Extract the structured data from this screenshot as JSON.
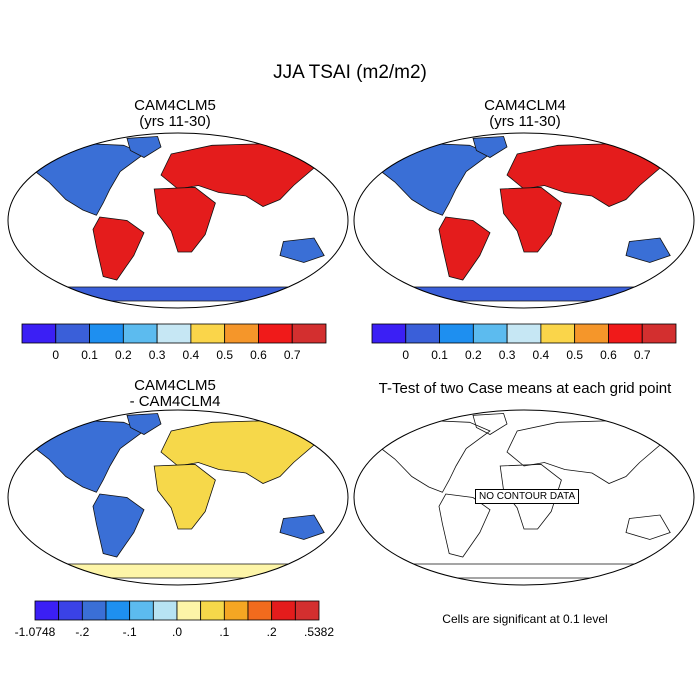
{
  "main_title": "JJA TSAI (m2/m2)",
  "panels": [
    {
      "id": "cam4clm5",
      "title_line1": "CAM4CLM5",
      "title_line2": "(yrs 11-30)"
    },
    {
      "id": "cam4clm4",
      "title_line1": "CAM4CLM4",
      "title_line2": "(yrs 11-30)"
    },
    {
      "id": "diff",
      "title_line1": "CAM4CLM5",
      "title_line2": "- CAM4CLM4"
    },
    {
      "id": "ttest",
      "title_line1": "T-Test of two Case means at each grid point",
      "title_line2": ""
    }
  ],
  "colorbar_abs": {
    "colors": [
      "#3b1ff5",
      "#3a5fd9",
      "#1e8ff0",
      "#5cbbef",
      "#c6e7f4",
      "#fad54a",
      "#f5962a",
      "#f01a1a",
      "#d32f2f"
    ],
    "labels": [
      "0",
      "0.1",
      "0.2",
      "0.3",
      "0.4",
      "0.5",
      "0.6",
      "0.7"
    ]
  },
  "colorbar_diff": {
    "colors": [
      "#3b1ff5",
      "#3a42e6",
      "#3a6fd6",
      "#1e90f0",
      "#5cbbef",
      "#b7e3f3",
      "#fdf5a8",
      "#f6d84a",
      "#f5a623",
      "#f26b1d",
      "#e41c1c",
      "#d32f2f"
    ],
    "labels": [
      "-1.0748",
      "-.2",
      "-.1",
      ".0",
      ".1",
      ".2",
      ".5382"
    ]
  },
  "no_contour_label": "NO CONTOUR DATA",
  "footnote": "Cells are significant at 0.1 level",
  "map_colors": {
    "ocean": "#ffffff",
    "coast": "#111111",
    "antarctica_abs": "#3a5fd9",
    "antarctica_diff": "#fdf5a8",
    "land_low": "#3a6fd6",
    "land_mid": "#f6d84a",
    "land_high": "#e41c1c"
  }
}
